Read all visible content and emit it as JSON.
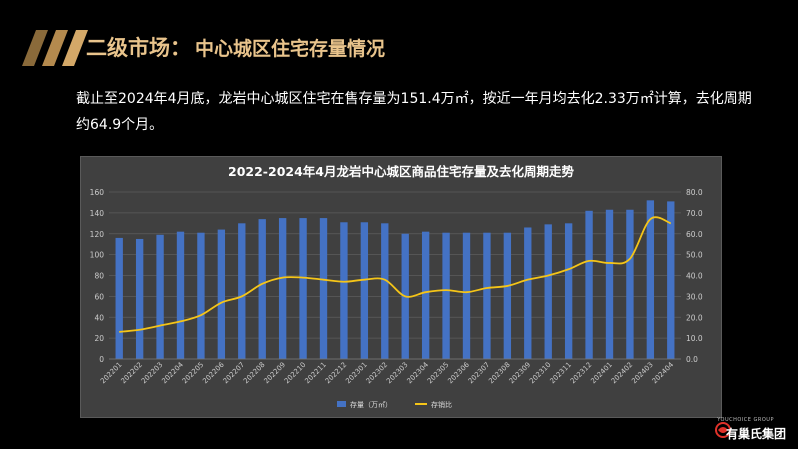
{
  "slide": {
    "title_part1": "二级市场",
    "title_colon": "：",
    "title_part2": "中心城区住宅存量情况",
    "description": "截止至2024年4月底，龙岩中心城区住宅在售存量为151.4万㎡，按近一年月均去化2.33万㎡计算，去化周期约64.9个月。",
    "logo_small": "YOUCHOICE GROUP",
    "logo_name": "有巢氏集团"
  },
  "colors": {
    "bar": "#4472c4",
    "line": "#f5c518",
    "title_accent": "#e9c48c",
    "chart_bg": "#404040"
  },
  "chart_data": {
    "type": "bar",
    "title": "2022-2024年4月龙岩中心城区商品住宅存量及去化周期走势",
    "categories": [
      "202201",
      "202202",
      "202203",
      "202204",
      "202205",
      "202206",
      "202207",
      "202208",
      "202209",
      "202210",
      "202211",
      "202212",
      "202301",
      "202302",
      "202303",
      "202304",
      "202305",
      "202306",
      "202307",
      "202308",
      "202309",
      "202310",
      "202311",
      "202312",
      "202401",
      "202402",
      "202403",
      "202404"
    ],
    "y_ticks": [
      "0",
      "20",
      "40",
      "60",
      "80",
      "100",
      "120",
      "140",
      "160"
    ],
    "y2_ticks": [
      "0.0",
      "10.0",
      "20.0",
      "30.0",
      "40.0",
      "50.0",
      "60.0",
      "70.0",
      "80.0"
    ],
    "ylim": [
      0,
      160
    ],
    "y2lim": [
      0,
      80
    ],
    "grid": true,
    "legend_position": "bottom",
    "series": [
      {
        "name": "存量（万㎡）",
        "type": "bar",
        "axis": "left",
        "values": [
          116,
          115,
          119,
          122,
          121,
          124,
          130,
          134,
          135,
          135,
          135,
          131,
          131,
          130,
          120,
          122,
          121,
          121,
          121,
          121,
          126,
          129,
          130,
          142,
          143,
          143,
          152,
          151
        ]
      },
      {
        "name": "存销比",
        "type": "line",
        "axis": "right",
        "values": [
          13,
          14,
          16,
          18,
          21,
          27,
          30,
          36,
          39,
          39,
          38,
          37,
          38,
          38,
          30,
          32,
          33,
          32,
          34,
          35,
          38,
          40,
          43,
          47,
          46,
          48,
          67,
          65
        ]
      }
    ]
  }
}
